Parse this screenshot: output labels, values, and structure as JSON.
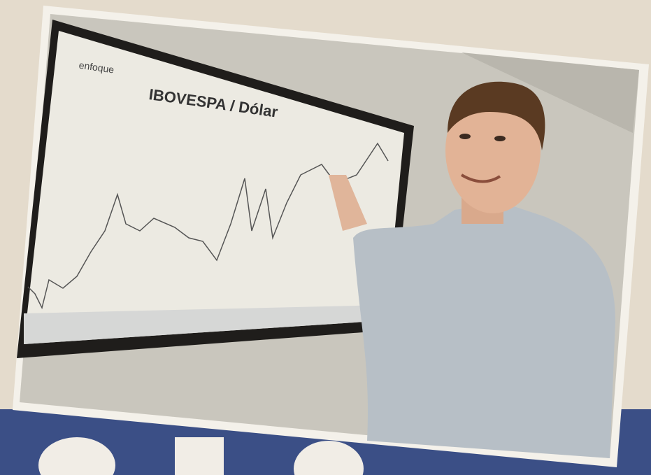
{
  "photo": {
    "logo": "enfoque",
    "board_title": "IBOVESPA / Dólar"
  }
}
